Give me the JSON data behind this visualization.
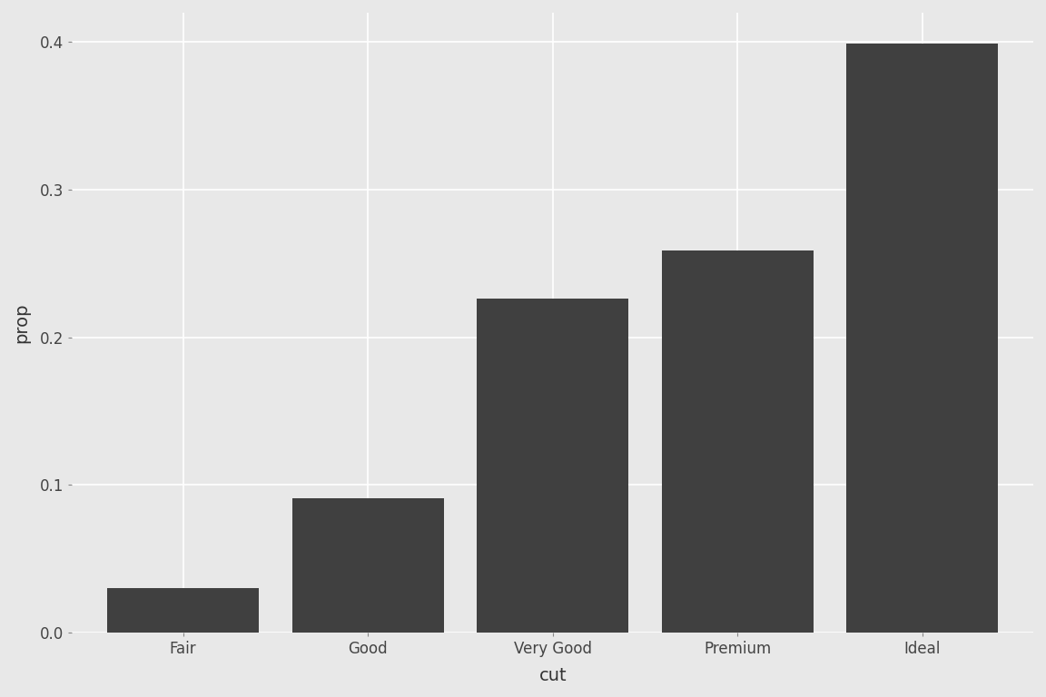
{
  "categories": [
    "Fair",
    "Good",
    "Very Good",
    "Premium",
    "Ideal"
  ],
  "values": [
    0.03,
    0.091,
    0.226,
    0.259,
    0.399
  ],
  "bar_color": "#404040",
  "background_color": "#e8e8e8",
  "panel_background": "#e8e8e8",
  "grid_color": "#ffffff",
  "xlabel": "cut",
  "ylabel": "prop",
  "ylim": [
    0,
    0.42
  ],
  "yticks": [
    0.0,
    0.1,
    0.2,
    0.3,
    0.4
  ],
  "axis_label_fontsize": 14,
  "tick_fontsize": 12,
  "bar_width": 0.82
}
